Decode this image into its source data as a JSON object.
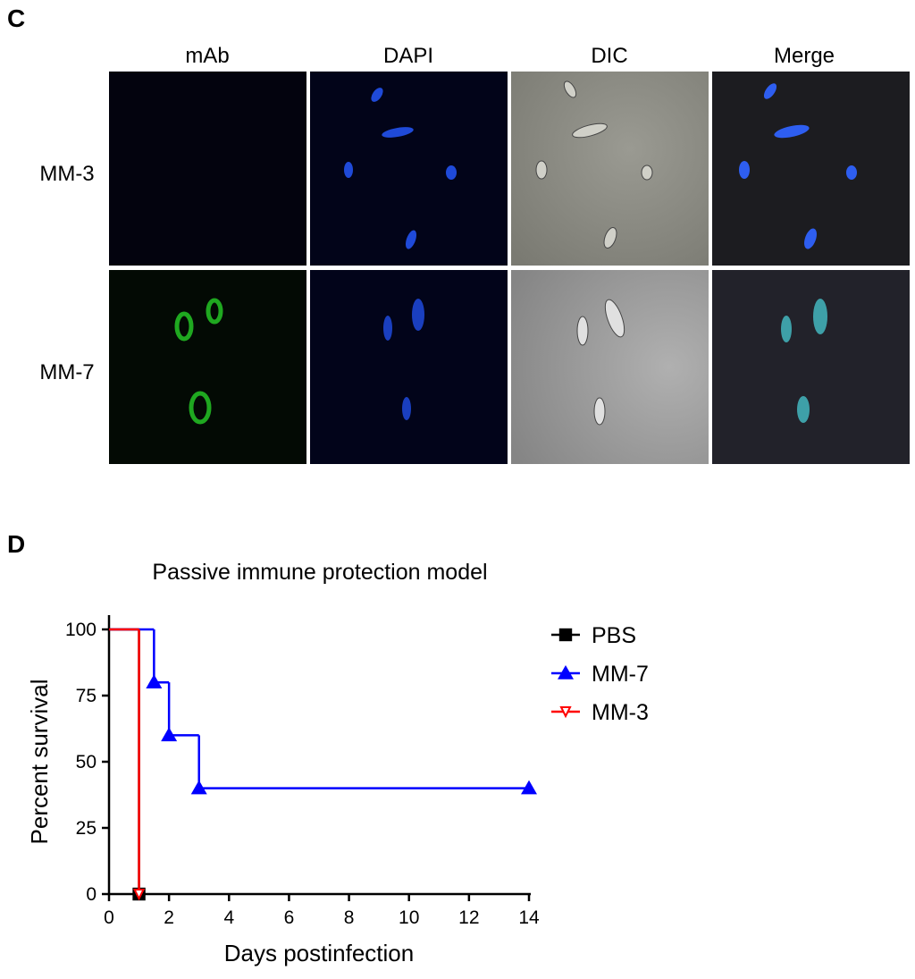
{
  "panel_c": {
    "label": "C",
    "columns": [
      "mAb",
      "DAPI",
      "DIC",
      "Merge"
    ],
    "rows": [
      "MM-3",
      "MM-7"
    ]
  },
  "panel_d": {
    "label": "D"
  },
  "chart_data": {
    "type": "step",
    "title": "Passive immune protection model",
    "x_label": "Days postinfection",
    "y_label": "Percent survival",
    "xlim": [
      0,
      14
    ],
    "xticks": [
      0,
      2,
      4,
      6,
      8,
      10,
      12,
      14
    ],
    "ylim": [
      0,
      100
    ],
    "yticks": [
      0,
      25,
      50,
      75,
      100
    ],
    "legend": "right",
    "series": [
      {
        "name": "PBS",
        "color": "#000000",
        "marker": "square",
        "x": [
          0,
          1
        ],
        "values": [
          100,
          0
        ]
      },
      {
        "name": "MM-7",
        "color": "#0000ff",
        "marker": "triangle-up",
        "x": [
          0,
          1.5,
          2,
          3,
          14
        ],
        "values": [
          100,
          80,
          60,
          40,
          40
        ]
      },
      {
        "name": "MM-3",
        "color": "#ff0000",
        "marker": "triangle-down",
        "x": [
          0,
          1
        ],
        "values": [
          100,
          0
        ]
      }
    ]
  }
}
